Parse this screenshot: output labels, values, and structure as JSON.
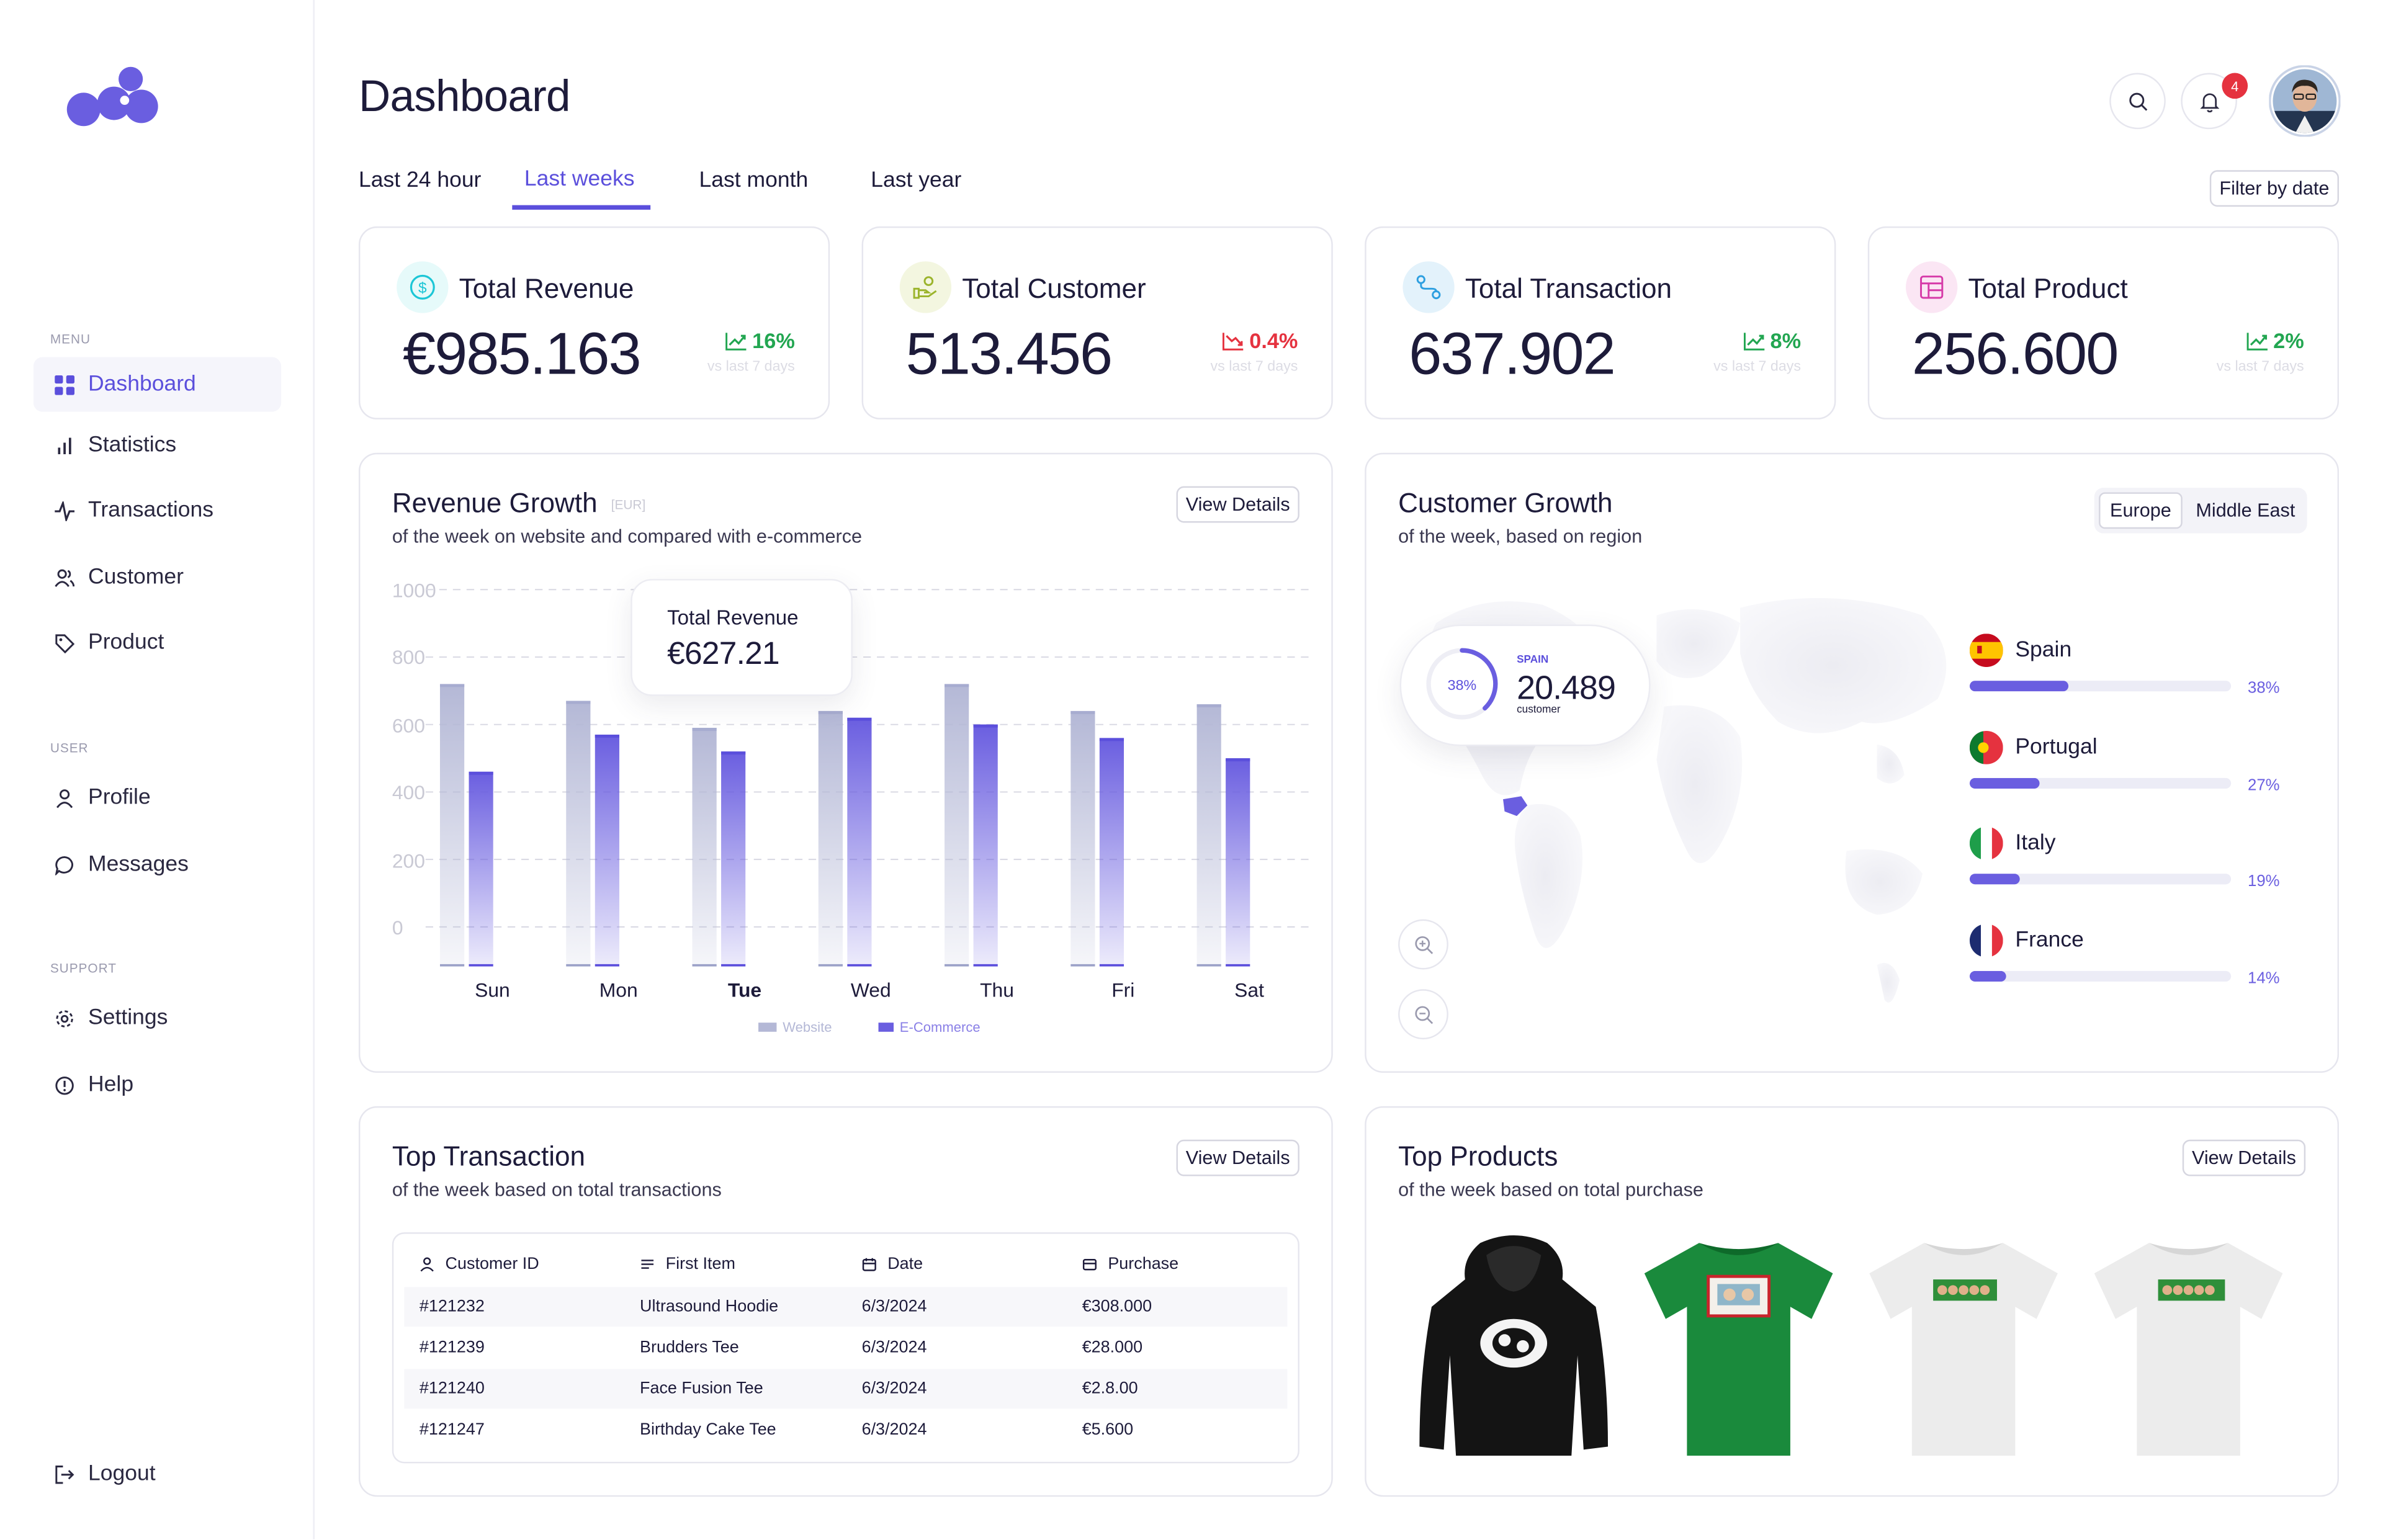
{
  "sidebar": {
    "sections": {
      "menu": "MENU",
      "user": "USER",
      "support": "SUPPORT"
    },
    "menu_items": [
      {
        "label": "Dashboard",
        "icon": "grid-icon"
      },
      {
        "label": "Statistics",
        "icon": "bar-chart-icon"
      },
      {
        "label": "Transactions",
        "icon": "activity-icon"
      },
      {
        "label": "Customer",
        "icon": "users-icon"
      },
      {
        "label": "Product",
        "icon": "tag-icon"
      }
    ],
    "user_items": [
      {
        "label": "Profile",
        "icon": "user-icon"
      },
      {
        "label": "Messages",
        "icon": "message-icon"
      }
    ],
    "support_items": [
      {
        "label": "Settings",
        "icon": "gear-icon"
      },
      {
        "label": "Help",
        "icon": "help-icon"
      }
    ],
    "logout": "Logout"
  },
  "header": {
    "title": "Dashboard",
    "notification_count": "4"
  },
  "tabs": [
    "Last 24 hour",
    "Last weeks",
    "Last month",
    "Last year"
  ],
  "active_tab": "Last weeks",
  "filter_label": "Filter by date",
  "stats": [
    {
      "title": "Total Revenue",
      "value": "€985.163",
      "change": "16%",
      "trend": "up",
      "sub": "vs last 7 days"
    },
    {
      "title": "Total Customer",
      "value": "513.456",
      "change": "0.4%",
      "trend": "down",
      "sub": "vs last 7 days"
    },
    {
      "title": "Total Transaction",
      "value": "637.902",
      "change": "8%",
      "trend": "up",
      "sub": "vs last 7 days"
    },
    {
      "title": "Total Product",
      "value": "256.600",
      "change": "2%",
      "trend": "up",
      "sub": "vs last 7 days"
    }
  ],
  "colors": {
    "accent": "#5b4fdc",
    "up": "#22a651",
    "down": "#e5323f",
    "website_bar": "#b4b8d6",
    "ecommerce_bar": "#6a5ee0"
  },
  "revenue": {
    "title": "Revenue Growth",
    "unit": "[EUR]",
    "subtitle": "of the week on website and compared with e-commerce",
    "view_details": "View Details",
    "tooltip_label": "Total Revenue",
    "tooltip_value": "€627.21",
    "highlight_day": "Tue"
  },
  "chart_data": {
    "type": "bar",
    "categories": [
      "Sun",
      "Mon",
      "Tue",
      "Wed",
      "Thu",
      "Fri",
      "Sat"
    ],
    "series": [
      {
        "name": "Website",
        "values": [
          720,
          670,
          590,
          640,
          720,
          640,
          660
        ]
      },
      {
        "name": "E-Commerce",
        "values": [
          460,
          570,
          520,
          620,
          600,
          560,
          500
        ]
      }
    ],
    "yticks": [
      "1000",
      "800",
      "600",
      "400",
      "200",
      "0"
    ],
    "ylim": [
      0,
      1000
    ]
  },
  "customer_growth": {
    "title": "Customer Growth",
    "subtitle": "of the week, based on region",
    "regions": [
      "Europe",
      "Middle East"
    ],
    "active_region": "Europe",
    "callout": {
      "country": "SPAIN",
      "value": "20.489",
      "label": "customer",
      "percent": "38%",
      "fraction": 0.38
    },
    "countries": [
      {
        "name": "Spain",
        "percent": "38%",
        "fraction": 0.38
      },
      {
        "name": "Portugal",
        "percent": "27%",
        "fraction": 0.27
      },
      {
        "name": "Italy",
        "percent": "19%",
        "fraction": 0.19
      },
      {
        "name": "France",
        "percent": "14%",
        "fraction": 0.14
      }
    ]
  },
  "top_transaction": {
    "title": "Top Transaction",
    "subtitle": "of the week based on total transactions",
    "view_details": "View Details",
    "columns": [
      "Customer ID",
      "First Item",
      "Date",
      "Purchase"
    ],
    "rows": [
      [
        "#121232",
        "Ultrasound Hoodie",
        "6/3/2024",
        "€308.000"
      ],
      [
        "#121239",
        "Brudders Tee",
        "6/3/2024",
        "€28.000"
      ],
      [
        "#121240",
        "Face Fusion Tee",
        "6/3/2024",
        "€2.8.00"
      ],
      [
        "#121247",
        "Birthday Cake Tee",
        "6/3/2024",
        "€5.600"
      ]
    ]
  },
  "top_products": {
    "title": "Top Products",
    "subtitle": "of the week based on total purchase",
    "view_details": "View Details"
  }
}
